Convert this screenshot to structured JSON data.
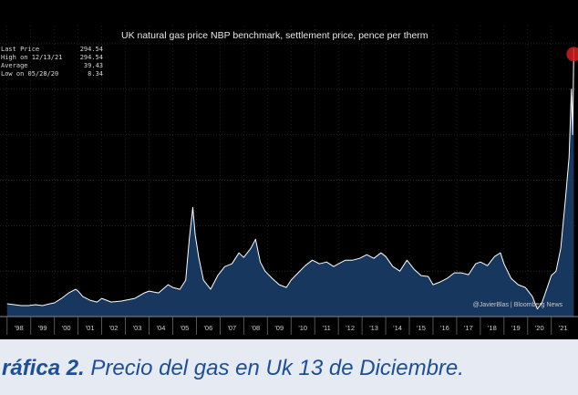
{
  "chart_data": {
    "type": "area",
    "title": "UK natural gas price NBP benchmark, settlement price, pence per therm",
    "stats": [
      {
        "label": "Last Price",
        "value": "294.54"
      },
      {
        "label": "High on 12/13/21",
        "value": "294.54"
      },
      {
        "label": "Average",
        "value": "39.43"
      },
      {
        "label": "Low on 05/28/20",
        "value": "8.34"
      }
    ],
    "x_tick_labels": [
      "'98",
      "'99",
      "'00",
      "'01",
      "'02",
      "'03",
      "'04",
      "'05",
      "'06",
      "'07",
      "'08",
      "'09",
      "'10",
      "'11",
      "'12",
      "'13",
      "'14",
      "'15",
      "'16",
      "'17",
      "'18",
      "'19",
      "'20",
      "'21"
    ],
    "xlim": [
      1997.7,
      2022.05
    ],
    "ylim": [
      0,
      320
    ],
    "grid": true,
    "credit": "@JavierBlas | Bloomberg News",
    "colors": {
      "line": "#ffffff",
      "fill": "#17375e",
      "background": "#000000",
      "marker": "#d42020",
      "grid": "#3a3a3a"
    },
    "series": [
      {
        "x": [
          1998.0,
          1998.3,
          1998.6,
          1998.9,
          1999.2,
          1999.5,
          1999.8,
          2000.0,
          2000.3,
          2000.6,
          2000.9,
          2001.0,
          2001.2,
          2001.5,
          2001.8,
          2002.0,
          2002.4,
          2002.8,
          2003.0,
          2003.4,
          2003.8,
          2004.0,
          2004.4,
          2004.8,
          2005.0,
          2005.3,
          2005.55,
          2005.7,
          2005.85,
          2005.95,
          2006.1,
          2006.3,
          2006.6,
          2006.9,
          2007.2,
          2007.5,
          2007.8,
          2008.0,
          2008.3,
          2008.5,
          2008.7,
          2008.9,
          2009.2,
          2009.5,
          2009.8,
          2010.0,
          2010.3,
          2010.6,
          2010.9,
          2011.2,
          2011.5,
          2011.8,
          2012.0,
          2012.3,
          2012.6,
          2012.9,
          2013.2,
          2013.5,
          2013.8,
          2014.0,
          2014.3,
          2014.6,
          2014.9,
          2015.2,
          2015.5,
          2015.8,
          2016.0,
          2016.3,
          2016.6,
          2016.9,
          2017.2,
          2017.5,
          2017.8,
          2018.0,
          2018.3,
          2018.6,
          2018.85,
          2019.0,
          2019.3,
          2019.6,
          2019.9,
          2020.2,
          2020.41,
          2020.6,
          2020.8,
          2021.0,
          2021.2,
          2021.4,
          2021.6,
          2021.75,
          2021.85,
          2021.9,
          2021.95
        ],
        "y": [
          14,
          13,
          12,
          12,
          13,
          12,
          14,
          15,
          20,
          26,
          30,
          28,
          22,
          18,
          16,
          20,
          16,
          17,
          18,
          20,
          26,
          28,
          26,
          35,
          32,
          30,
          40,
          85,
          120,
          90,
          65,
          40,
          30,
          45,
          55,
          58,
          70,
          65,
          75,
          85,
          60,
          50,
          42,
          35,
          32,
          40,
          48,
          56,
          62,
          58,
          60,
          55,
          58,
          62,
          62,
          64,
          68,
          64,
          70,
          66,
          55,
          50,
          62,
          52,
          45,
          44,
          35,
          38,
          42,
          48,
          48,
          46,
          58,
          60,
          56,
          66,
          70,
          58,
          42,
          35,
          32,
          22,
          8.34,
          15,
          30,
          45,
          50,
          75,
          130,
          175,
          250,
          200,
          294.54
        ]
      }
    ]
  },
  "caption": {
    "lead": "ráfica 2.",
    "text": " Precio del gas en Uk 13 de Diciembre."
  }
}
